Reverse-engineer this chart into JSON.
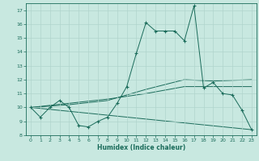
{
  "xlabel": "Humidex (Indice chaleur)",
  "bg_color": "#c8e8e0",
  "line_color": "#1a6b5a",
  "grid_color": "#b0d4cc",
  "xlim": [
    -0.5,
    23.5
  ],
  "ylim": [
    8.0,
    17.5
  ],
  "yticks": [
    8,
    9,
    10,
    11,
    12,
    13,
    14,
    15,
    16,
    17
  ],
  "xticks": [
    0,
    1,
    2,
    3,
    4,
    5,
    6,
    7,
    8,
    9,
    10,
    11,
    12,
    13,
    14,
    15,
    16,
    17,
    18,
    19,
    20,
    21,
    22,
    23
  ],
  "main_series": {
    "x": [
      0,
      1,
      2,
      3,
      4,
      5,
      6,
      7,
      8,
      9,
      10,
      11,
      12,
      13,
      14,
      15,
      16,
      17,
      18,
      19,
      20,
      21,
      22,
      23
    ],
    "y": [
      10.0,
      9.3,
      10.0,
      10.5,
      10.0,
      8.7,
      8.6,
      9.0,
      9.3,
      10.3,
      11.5,
      13.9,
      16.1,
      15.5,
      15.5,
      15.5,
      14.8,
      17.3,
      11.4,
      11.8,
      11.0,
      10.9,
      9.8,
      8.4
    ]
  },
  "trend_lines": [
    {
      "x": [
        0,
        4,
        8,
        12,
        16,
        19,
        23
      ],
      "y": [
        10.0,
        10.2,
        10.5,
        11.3,
        12.0,
        11.9,
        12.0
      ]
    },
    {
      "x": [
        0,
        4,
        8,
        12,
        16,
        19,
        23
      ],
      "y": [
        10.0,
        10.3,
        10.6,
        11.0,
        11.5,
        11.5,
        11.5
      ]
    },
    {
      "x": [
        0,
        23
      ],
      "y": [
        10.0,
        8.4
      ]
    }
  ]
}
